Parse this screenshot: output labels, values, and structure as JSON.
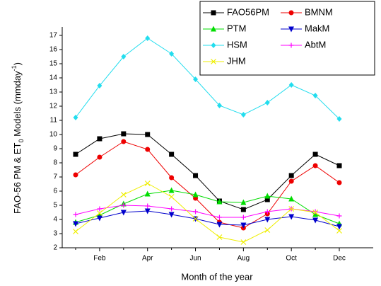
{
  "chart_data": {
    "type": "line",
    "x_label": "Month of the year",
    "y_label": [
      "FAO-56 PM & ET",
      "0",
      " Models (mmday",
      "-1",
      ")"
    ],
    "categories": [
      null,
      "Feb",
      null,
      "Apr",
      null,
      "Jun",
      null,
      "Aug",
      null,
      "Oct",
      null,
      "Dec"
    ],
    "ylim": [
      2,
      17.6
    ],
    "yticks": [
      2,
      3,
      4,
      5,
      6,
      7,
      8,
      9,
      10,
      11,
      12,
      13,
      14,
      15,
      16,
      17
    ],
    "legend": "top-right",
    "series": [
      {
        "name": "FAO56PM",
        "color": "#000000",
        "marker": "square",
        "values": [
          8.6,
          9.7,
          10.05,
          10.0,
          8.6,
          7.1,
          5.3,
          4.7,
          5.4,
          7.1,
          8.6,
          7.8
        ]
      },
      {
        "name": "BMNM",
        "color": "#ee0000",
        "marker": "circle",
        "values": [
          7.15,
          8.4,
          9.5,
          8.95,
          6.95,
          5.5,
          3.8,
          3.4,
          4.4,
          6.7,
          7.8,
          6.6
        ]
      },
      {
        "name": "PTM",
        "color": "#00dd00",
        "marker": "triangle-up",
        "values": [
          3.8,
          4.3,
          5.1,
          5.8,
          6.05,
          5.75,
          5.25,
          5.2,
          5.65,
          5.45,
          4.35,
          3.7
        ]
      },
      {
        "name": "MakM",
        "color": "#0000cc",
        "marker": "triangle-down",
        "values": [
          3.7,
          4.1,
          4.5,
          4.6,
          4.35,
          4.05,
          3.65,
          3.6,
          4.0,
          4.2,
          3.95,
          3.5
        ]
      },
      {
        "name": "HSM",
        "color": "#22ddee",
        "marker": "diamond",
        "values": [
          11.2,
          13.45,
          15.5,
          16.8,
          15.7,
          13.9,
          12.05,
          11.4,
          12.25,
          13.5,
          12.75,
          11.1
        ]
      },
      {
        "name": "AbtM",
        "color": "#ff00ff",
        "marker": "plus",
        "values": [
          4.35,
          4.75,
          5.0,
          4.95,
          4.75,
          4.55,
          4.15,
          4.15,
          4.55,
          4.75,
          4.55,
          4.25
        ]
      },
      {
        "name": "JHM",
        "color": "#eeee00",
        "marker": "cross",
        "values": [
          3.15,
          4.45,
          5.75,
          6.55,
          5.6,
          4.05,
          2.75,
          2.4,
          3.25,
          4.75,
          4.5,
          3.2
        ]
      }
    ]
  }
}
